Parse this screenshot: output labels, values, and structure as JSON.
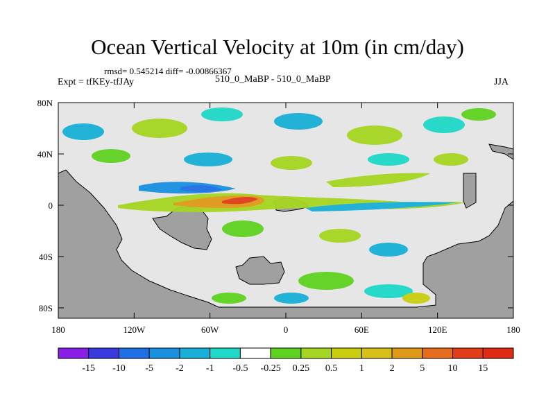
{
  "title": "Ocean Vertical Velocity at 10m (in cm/day)",
  "stats": "rmsd= 0.545214 diff= -0.00866367",
  "experiment": "Expt = tfKEy-tfJAy",
  "cases": "510_0_MaBP - 510_0_MaBP",
  "season": "JJA",
  "y_ticks": [
    "80N",
    "40N",
    "0",
    "40S",
    "80S"
  ],
  "x_ticks": [
    "180",
    "120W",
    "60W",
    "0",
    "60E",
    "120E",
    "180"
  ],
  "colorbar": {
    "labels": [
      "-15",
      "-10",
      "-5",
      "-2",
      "-1",
      "-0.5",
      "-0.25",
      "0.25",
      "0.5",
      "1",
      "2",
      "5",
      "10",
      "15"
    ],
    "colors": [
      "#8a1fe6",
      "#3a3ae0",
      "#1f6fe6",
      "#1990e0",
      "#18b0d8",
      "#1ed8c8",
      "#ffffff",
      "#5fd21f",
      "#a6d622",
      "#c9cf10",
      "#d8c018",
      "#e09a19",
      "#e66d1c",
      "#e23d19",
      "#e02a14"
    ]
  },
  "land_color": "#a0a0a0",
  "background_color": "#e6e6e6"
}
